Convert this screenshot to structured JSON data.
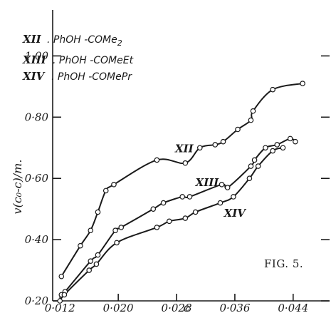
{
  "chart_data": {
    "type": "scatter",
    "figure_label": "FIG. 5.",
    "ylabel": "v(c₀-c)/m.",
    "xlabel": "c",
    "xlim": [
      0.011,
      0.049
    ],
    "ylim": [
      0.2,
      1.15
    ],
    "x_ticks": [
      0.012,
      0.02,
      0.028,
      0.036,
      0.044
    ],
    "x_tick_labels": [
      "0·012",
      "0·020",
      "0·028",
      "0·036",
      "0·044"
    ],
    "y_ticks": [
      0.2,
      0.4,
      0.6,
      0.8,
      1.0
    ],
    "y_tick_labels": [
      "0·20",
      "0·40",
      "0·60",
      "0·80",
      "1·00"
    ],
    "grid": false,
    "legend_position": "top-left",
    "legend": [
      {
        "numeral": "XII",
        "text": ". PhOH -COMe",
        "sub": "2"
      },
      {
        "numeral": "XIII",
        "text": ". PhOH -COMeEt",
        "sub": ""
      },
      {
        "numeral": "XIV",
        "text": ". PhOH -COMePr",
        "sub": ""
      }
    ],
    "series": [
      {
        "name": "XII",
        "label_at": [
          0.0278,
          0.685
        ],
        "x": [
          0.0122,
          0.0148,
          0.0162,
          0.0172,
          0.0183,
          0.0194,
          0.0253,
          0.0292,
          0.0312,
          0.0333,
          0.0344,
          0.0364,
          0.0382,
          0.0385,
          0.0412,
          0.0453
        ],
        "y": [
          0.28,
          0.38,
          0.43,
          0.49,
          0.56,
          0.58,
          0.66,
          0.65,
          0.7,
          0.71,
          0.72,
          0.76,
          0.79,
          0.82,
          0.89,
          0.91
        ]
      },
      {
        "name": "XIII",
        "label_at": [
          0.0306,
          0.575
        ],
        "x": [
          0.0122,
          0.0127,
          0.0162,
          0.0172,
          0.0196,
          0.0204,
          0.0248,
          0.0262,
          0.0288,
          0.0298,
          0.0342,
          0.035,
          0.0382,
          0.0387,
          0.0402,
          0.0418,
          0.0436,
          0.0443
        ],
        "y": [
          0.22,
          0.23,
          0.33,
          0.35,
          0.43,
          0.44,
          0.5,
          0.52,
          0.54,
          0.54,
          0.58,
          0.57,
          0.64,
          0.66,
          0.7,
          0.71,
          0.73,
          0.72
        ]
      },
      {
        "name": "XIV",
        "label_at": [
          0.0345,
          0.475
        ],
        "x": [
          0.012,
          0.0126,
          0.016,
          0.017,
          0.0198,
          0.0253,
          0.027,
          0.0292,
          0.0306,
          0.034,
          0.0358,
          0.038,
          0.0392,
          0.0412,
          0.0426
        ],
        "y": [
          0.2,
          0.22,
          0.3,
          0.32,
          0.39,
          0.44,
          0.46,
          0.47,
          0.49,
          0.52,
          0.54,
          0.6,
          0.64,
          0.69,
          0.7
        ]
      }
    ]
  }
}
